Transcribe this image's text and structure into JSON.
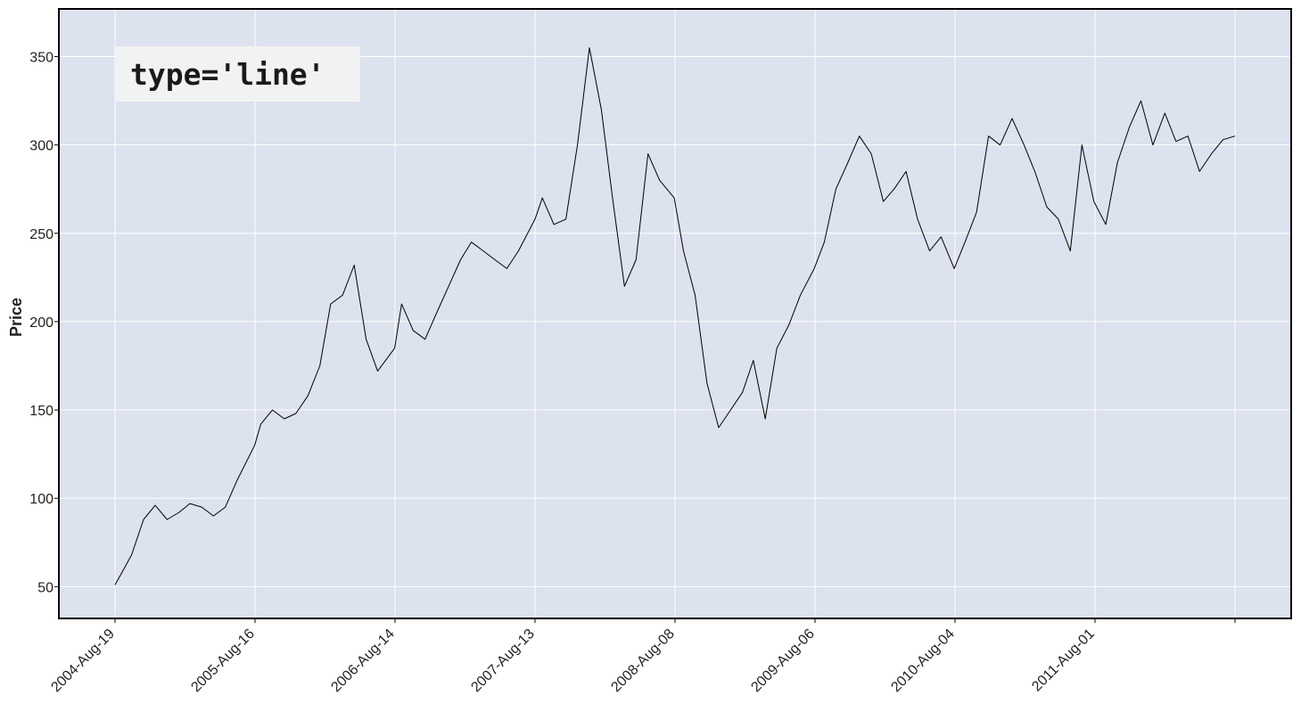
{
  "chart_data": {
    "type": "line",
    "annotation": "type='line'",
    "ylabel": "Price",
    "xlabel": "",
    "ylim": [
      32,
      377
    ],
    "grid": true,
    "colors": {
      "plot_background": "#dce2ee",
      "grid": "#ffffff",
      "line": "#000000",
      "annotation_box": "#f1f3f3"
    },
    "y_ticks": [
      50,
      100,
      150,
      200,
      250,
      300,
      350
    ],
    "x_ticks": [
      "2004-Aug-19",
      "2005-Aug-16",
      "2006-Aug-14",
      "2007-Aug-13",
      "2008-Aug-08",
      "2009-Aug-06",
      "2010-Aug-04",
      "2011-Aug-01"
    ],
    "x": [
      "2004-08-19",
      "2004-09-01",
      "2004-10-01",
      "2004-11-01",
      "2004-12-01",
      "2005-01-01",
      "2005-02-01",
      "2005-03-01",
      "2005-04-01",
      "2005-05-01",
      "2005-06-01",
      "2005-07-01",
      "2005-08-16",
      "2005-09-01",
      "2005-10-01",
      "2005-11-01",
      "2005-12-01",
      "2006-01-01",
      "2006-02-01",
      "2006-03-01",
      "2006-04-01",
      "2006-05-01",
      "2006-06-01",
      "2006-07-01",
      "2006-08-14",
      "2006-09-01",
      "2006-10-01",
      "2006-11-01",
      "2006-12-01",
      "2007-01-01",
      "2007-02-01",
      "2007-03-01",
      "2007-04-01",
      "2007-05-01",
      "2007-06-01",
      "2007-07-01",
      "2007-08-13",
      "2007-09-01",
      "2007-10-01",
      "2007-11-01",
      "2007-12-01",
      "2008-01-01",
      "2008-02-01",
      "2008-03-01",
      "2008-04-01",
      "2008-05-01",
      "2008-06-01",
      "2008-07-01",
      "2008-08-08",
      "2008-09-01",
      "2008-10-01",
      "2008-11-01",
      "2008-12-01",
      "2009-01-01",
      "2009-02-01",
      "2009-03-01",
      "2009-04-01",
      "2009-05-01",
      "2009-06-01",
      "2009-07-01",
      "2009-08-06",
      "2009-09-01",
      "2009-10-01",
      "2009-11-01",
      "2009-12-01",
      "2010-01-01",
      "2010-02-01",
      "2010-03-01",
      "2010-04-01",
      "2010-05-01",
      "2010-06-01",
      "2010-07-01",
      "2010-08-04",
      "2010-09-01",
      "2010-10-01",
      "2010-11-01",
      "2010-12-01",
      "2011-01-01",
      "2011-02-01",
      "2011-03-01",
      "2011-04-01",
      "2011-05-01",
      "2011-06-01",
      "2011-07-01",
      "2011-08-01",
      "2011-09-01",
      "2011-10-01",
      "2011-11-01",
      "2011-12-01",
      "2012-01-01",
      "2012-02-01",
      "2012-03-01",
      "2012-04-01",
      "2012-05-01",
      "2012-06-01",
      "2012-07-01",
      "2012-08-01"
    ],
    "series": [
      {
        "values": [
          51,
          56,
          68,
          88,
          96,
          88,
          92,
          97,
          95,
          90,
          95,
          110,
          130,
          142,
          150,
          145,
          148,
          158,
          175,
          210,
          215,
          232,
          190,
          172,
          185,
          210,
          195,
          190,
          205,
          220,
          235,
          245,
          240,
          235,
          230,
          240,
          258,
          270,
          255,
          258,
          300,
          355,
          320,
          270,
          220,
          235,
          295,
          280,
          270,
          240,
          215,
          165,
          140,
          150,
          160,
          178,
          145,
          185,
          198,
          215,
          230,
          245,
          275,
          290,
          305,
          295,
          268,
          275,
          285,
          258,
          240,
          248,
          230,
          245,
          262,
          305,
          300,
          315,
          300,
          285,
          265,
          258,
          240,
          300,
          268,
          255,
          290,
          310,
          325,
          300,
          318,
          302,
          305,
          285,
          295,
          303,
          305
        ]
      }
    ]
  }
}
